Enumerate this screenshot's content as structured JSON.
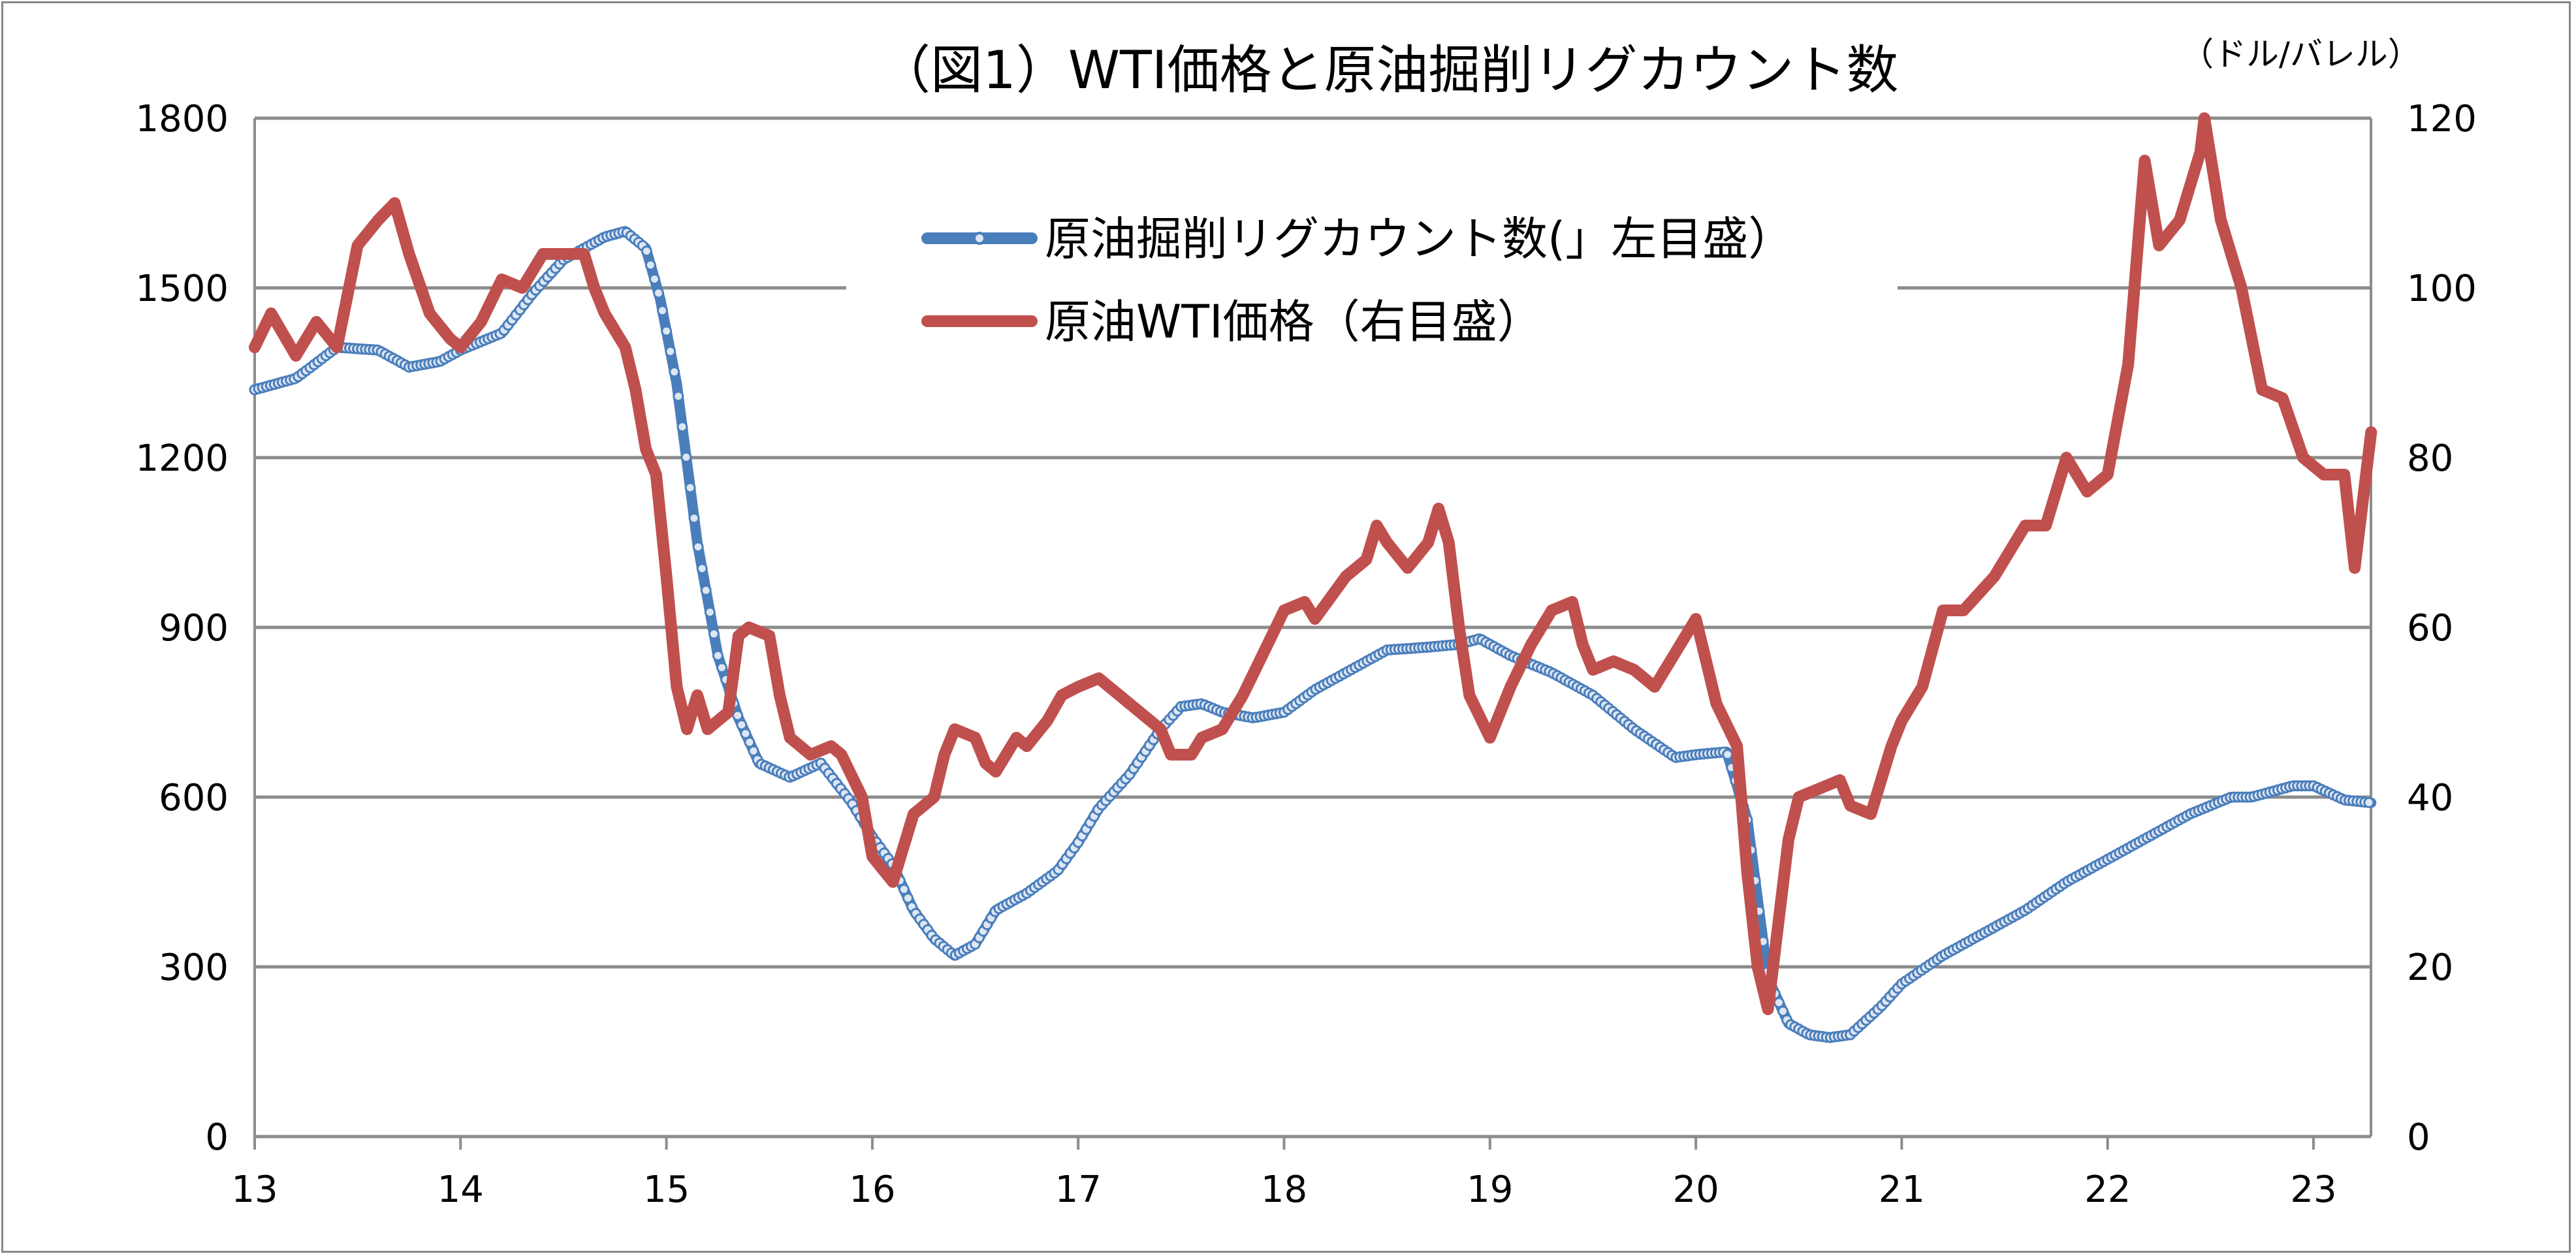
{
  "chart_data": {
    "type": "line",
    "title": "（図1）WTI価格と原油掘削リグカウント数",
    "right_axis_unit": "（ドル/バレル）",
    "x_ticks": [
      "13",
      "14",
      "15",
      "16",
      "17",
      "18",
      "19",
      "20",
      "21",
      "22",
      "23"
    ],
    "x_range": [
      2013,
      2023.28
    ],
    "left_axis": {
      "ylim": [
        0,
        1800
      ],
      "ticks": [
        "0",
        "300",
        "600",
        "900",
        "1200",
        "1500",
        "1800"
      ]
    },
    "right_axis": {
      "ylim": [
        0,
        120
      ],
      "ticks": [
        "0",
        "20",
        "40",
        "60",
        "80",
        "100",
        "120"
      ]
    },
    "grid": "horizontal",
    "legend_placement": "top-center",
    "series": [
      {
        "name": "原油掘削リグカウント数(」左目盛）",
        "axis": "left",
        "color": "#4A7EBB",
        "markers": true,
        "points": [
          [
            2013.0,
            1320
          ],
          [
            2013.2,
            1340
          ],
          [
            2013.4,
            1395
          ],
          [
            2013.6,
            1390
          ],
          [
            2013.75,
            1360
          ],
          [
            2013.9,
            1370
          ],
          [
            2014.0,
            1390
          ],
          [
            2014.2,
            1420
          ],
          [
            2014.35,
            1490
          ],
          [
            2014.5,
            1550
          ],
          [
            2014.6,
            1570
          ],
          [
            2014.7,
            1590
          ],
          [
            2014.8,
            1600
          ],
          [
            2014.9,
            1570
          ],
          [
            2014.97,
            1480
          ],
          [
            2015.05,
            1330
          ],
          [
            2015.15,
            1050
          ],
          [
            2015.25,
            850
          ],
          [
            2015.35,
            740
          ],
          [
            2015.45,
            660
          ],
          [
            2015.6,
            635
          ],
          [
            2015.75,
            660
          ],
          [
            2015.9,
            590
          ],
          [
            2016.0,
            530
          ],
          [
            2016.1,
            480
          ],
          [
            2016.2,
            400
          ],
          [
            2016.3,
            350
          ],
          [
            2016.4,
            320
          ],
          [
            2016.5,
            340
          ],
          [
            2016.6,
            400
          ],
          [
            2016.75,
            430
          ],
          [
            2016.9,
            470
          ],
          [
            2017.0,
            520
          ],
          [
            2017.1,
            580
          ],
          [
            2017.25,
            640
          ],
          [
            2017.4,
            720
          ],
          [
            2017.5,
            760
          ],
          [
            2017.6,
            765
          ],
          [
            2017.7,
            750
          ],
          [
            2017.85,
            740
          ],
          [
            2018.0,
            750
          ],
          [
            2018.15,
            790
          ],
          [
            2018.3,
            820
          ],
          [
            2018.5,
            860
          ],
          [
            2018.7,
            865
          ],
          [
            2018.85,
            870
          ],
          [
            2018.95,
            880
          ],
          [
            2019.1,
            850
          ],
          [
            2019.3,
            820
          ],
          [
            2019.5,
            780
          ],
          [
            2019.7,
            720
          ],
          [
            2019.9,
            670
          ],
          [
            2020.0,
            675
          ],
          [
            2020.15,
            680
          ],
          [
            2020.25,
            560
          ],
          [
            2020.3,
            420
          ],
          [
            2020.35,
            280
          ],
          [
            2020.45,
            200
          ],
          [
            2020.55,
            180
          ],
          [
            2020.65,
            175
          ],
          [
            2020.75,
            180
          ],
          [
            2020.9,
            230
          ],
          [
            2021.0,
            270
          ],
          [
            2021.2,
            320
          ],
          [
            2021.4,
            360
          ],
          [
            2021.6,
            400
          ],
          [
            2021.8,
            450
          ],
          [
            2022.0,
            490
          ],
          [
            2022.2,
            530
          ],
          [
            2022.4,
            570
          ],
          [
            2022.6,
            600
          ],
          [
            2022.7,
            600
          ],
          [
            2022.9,
            620
          ],
          [
            2023.0,
            620
          ],
          [
            2023.15,
            595
          ],
          [
            2023.28,
            590
          ]
        ]
      },
      {
        "name": "原油WTI価格（右目盛）",
        "axis": "right",
        "color": "#C0504D",
        "markers": false,
        "points": [
          [
            2013.0,
            93
          ],
          [
            2013.08,
            97
          ],
          [
            2013.2,
            92
          ],
          [
            2013.3,
            96
          ],
          [
            2013.4,
            93
          ],
          [
            2013.5,
            105
          ],
          [
            2013.6,
            108
          ],
          [
            2013.68,
            110
          ],
          [
            2013.75,
            104
          ],
          [
            2013.85,
            97
          ],
          [
            2013.95,
            94
          ],
          [
            2014.0,
            93
          ],
          [
            2014.1,
            96
          ],
          [
            2014.2,
            101
          ],
          [
            2014.3,
            100
          ],
          [
            2014.4,
            104
          ],
          [
            2014.5,
            104
          ],
          [
            2014.6,
            104
          ],
          [
            2014.65,
            100
          ],
          [
            2014.7,
            97
          ],
          [
            2014.8,
            93
          ],
          [
            2014.85,
            88
          ],
          [
            2014.9,
            81
          ],
          [
            2014.95,
            78
          ],
          [
            2015.0,
            66
          ],
          [
            2015.05,
            53
          ],
          [
            2015.1,
            48
          ],
          [
            2015.15,
            52
          ],
          [
            2015.2,
            48
          ],
          [
            2015.3,
            50
          ],
          [
            2015.35,
            59
          ],
          [
            2015.4,
            60
          ],
          [
            2015.5,
            59
          ],
          [
            2015.55,
            52
          ],
          [
            2015.6,
            47
          ],
          [
            2015.7,
            45
          ],
          [
            2015.8,
            46
          ],
          [
            2015.85,
            45
          ],
          [
            2015.95,
            40
          ],
          [
            2016.0,
            33
          ],
          [
            2016.1,
            30
          ],
          [
            2016.2,
            38
          ],
          [
            2016.3,
            40
          ],
          [
            2016.35,
            45
          ],
          [
            2016.4,
            48
          ],
          [
            2016.5,
            47
          ],
          [
            2016.55,
            44
          ],
          [
            2016.6,
            43
          ],
          [
            2016.7,
            47
          ],
          [
            2016.75,
            46
          ],
          [
            2016.85,
            49
          ],
          [
            2016.92,
            52
          ],
          [
            2017.0,
            53
          ],
          [
            2017.1,
            54
          ],
          [
            2017.2,
            52
          ],
          [
            2017.3,
            50
          ],
          [
            2017.4,
            48
          ],
          [
            2017.45,
            45
          ],
          [
            2017.55,
            45
          ],
          [
            2017.6,
            47
          ],
          [
            2017.7,
            48
          ],
          [
            2017.8,
            52
          ],
          [
            2017.9,
            57
          ],
          [
            2018.0,
            62
          ],
          [
            2018.1,
            63
          ],
          [
            2018.15,
            61
          ],
          [
            2018.3,
            66
          ],
          [
            2018.4,
            68
          ],
          [
            2018.45,
            72
          ],
          [
            2018.5,
            70
          ],
          [
            2018.6,
            67
          ],
          [
            2018.7,
            70
          ],
          [
            2018.75,
            74
          ],
          [
            2018.8,
            70
          ],
          [
            2018.85,
            60
          ],
          [
            2018.9,
            52
          ],
          [
            2019.0,
            47
          ],
          [
            2019.1,
            53
          ],
          [
            2019.2,
            58
          ],
          [
            2019.3,
            62
          ],
          [
            2019.4,
            63
          ],
          [
            2019.45,
            58
          ],
          [
            2019.5,
            55
          ],
          [
            2019.6,
            56
          ],
          [
            2019.7,
            55
          ],
          [
            2019.8,
            53
          ],
          [
            2019.9,
            57
          ],
          [
            2020.0,
            61
          ],
          [
            2020.05,
            56
          ],
          [
            2020.1,
            51
          ],
          [
            2020.2,
            46
          ],
          [
            2020.25,
            31
          ],
          [
            2020.3,
            20
          ],
          [
            2020.35,
            15
          ],
          [
            2020.4,
            25
          ],
          [
            2020.45,
            35
          ],
          [
            2020.5,
            40
          ],
          [
            2020.6,
            41
          ],
          [
            2020.7,
            42
          ],
          [
            2020.75,
            39
          ],
          [
            2020.85,
            38
          ],
          [
            2020.95,
            46
          ],
          [
            2021.0,
            49
          ],
          [
            2021.1,
            53
          ],
          [
            2021.2,
            62
          ],
          [
            2021.3,
            62
          ],
          [
            2021.45,
            66
          ],
          [
            2021.6,
            72
          ],
          [
            2021.7,
            72
          ],
          [
            2021.8,
            80
          ],
          [
            2021.9,
            76
          ],
          [
            2022.0,
            78
          ],
          [
            2022.1,
            91
          ],
          [
            2022.18,
            115
          ],
          [
            2022.25,
            105
          ],
          [
            2022.35,
            108
          ],
          [
            2022.45,
            116
          ],
          [
            2022.47,
            120
          ],
          [
            2022.55,
            108
          ],
          [
            2022.65,
            100
          ],
          [
            2022.75,
            88
          ],
          [
            2022.85,
            87
          ],
          [
            2022.95,
            80
          ],
          [
            2023.05,
            78
          ],
          [
            2023.15,
            78
          ],
          [
            2023.2,
            67
          ],
          [
            2023.28,
            83
          ]
        ]
      }
    ]
  }
}
